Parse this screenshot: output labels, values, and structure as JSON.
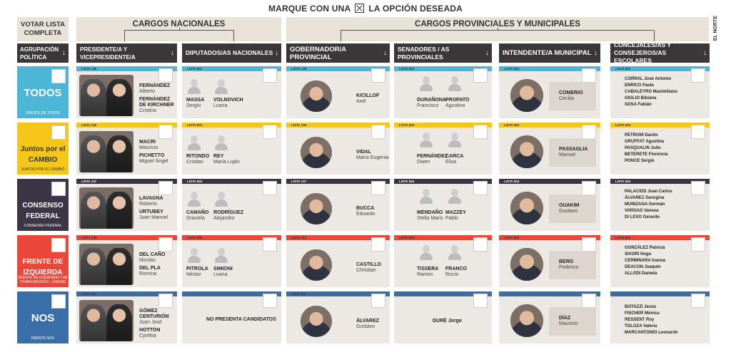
{
  "header": {
    "title_pre": "MARQUE CON UNA",
    "title_post": "LA OPCIÓN DESEADA",
    "brand": "EL NORTE"
  },
  "groups": {
    "votar": "VOTAR LISTA COMPLETA",
    "nacionales": "CARGOS NACIONALES",
    "provinciales": "CARGOS PROVINCIALES Y MUNICIPALES"
  },
  "columns": {
    "agrupacion": "AGRUPACIÓN POLÍTICA",
    "presidente": "PRESIDENTE/A Y VICEPRESIDENTE/A",
    "diputados": "DIPUTADOS/AS NACIONALES",
    "gobernador": "GOBERNADOR/A PROVINCIAL",
    "senadores": "SENADORES / AS PROVINCIALES",
    "intendente": "INTENDENTE/A MUNICIPAL",
    "concejales": "CONCEJALES/AS Y CONSEJEROS/AS ESCOLARES",
    "arrow": "↓"
  },
  "colors": {
    "todos": "#4bb6d6",
    "cambio": "#f5c518",
    "consenso": "#3b3545",
    "izquierda": "#e8473a",
    "nos": "#3a6ea8"
  },
  "parties": [
    {
      "logo": "TODOS",
      "sub": "FRENTE DE TODOS"
    },
    {
      "logo": "Juntos por el CAMBIO",
      "sub": "JUNTOS POR EL CAMBIO"
    },
    {
      "logo": "CONSENSO FEDERAL",
      "sub": "CONSENSO FEDERAL"
    },
    {
      "logo": "FRENTE DE IZQUIERDA",
      "sub": "FRENTE DE IZQUIERDA Y DE TRABAJADORES - UNIDAD"
    },
    {
      "logo": "NOS",
      "sub": "FRENTE NOS"
    }
  ],
  "rows": [
    {
      "pres_lista": "LISTA 136",
      "dip_lista": "LISTA 502",
      "gob_lista": "LISTA 136",
      "sen_lista": "LISTA 502",
      "int_lista": "LISTA 502",
      "con_lista": "LISTA 502",
      "pres": [
        {
          "ln": "FERNÁNDEZ",
          "fn": "Alberto"
        },
        {
          "ln": "FERNÁNDEZ DE KIRCHNER",
          "fn": "Cristina"
        }
      ],
      "dip": [
        {
          "ln": "MASSA",
          "fn": "Sergio"
        },
        {
          "ln": "VOLNOVICH",
          "fn": "Luana"
        }
      ],
      "gob": {
        "ln": "KICILLOF",
        "fn": "Axel"
      },
      "sen": [
        {
          "ln": "DURAÑONA",
          "fn": "Francisco"
        },
        {
          "ln": "PROPATO",
          "fn": "Agustina"
        }
      ],
      "int": {
        "ln": "COMERIO",
        "fn": "Cecilia"
      },
      "con": [
        "CORRAL José Antonio",
        "ENRICO Paola",
        "CABALEYRO Maximiliano",
        "GIGLIO Bibiana",
        "SOSA Fabián"
      ]
    },
    {
      "pres_lista": "LISTA 135",
      "dip_lista": "LISTA 503",
      "gob_lista": "LISTA 135",
      "sen_lista": "LISTA 503",
      "int_lista": "LISTA 503",
      "con_lista": "LISTA 503",
      "pres": [
        {
          "ln": "MACRI",
          "fn": "Mauricio"
        },
        {
          "ln": "PICHETTO",
          "fn": "Miguel Ángel"
        }
      ],
      "dip": [
        {
          "ln": "RITONDO",
          "fn": "Cristian"
        },
        {
          "ln": "REY",
          "fn": "María Luján"
        }
      ],
      "gob": {
        "ln": "VIDAL",
        "fn": "María Eugenia"
      },
      "sen": [
        {
          "ln": "FERNÁNDEZ",
          "fn": "Owen"
        },
        {
          "ln": "CARCA",
          "fn": "Elisa"
        }
      ],
      "int": {
        "ln": "PASSAGLIA",
        "fn": "Manuel"
      },
      "con": [
        "PETRONI Danilo",
        "GRUFFAT Agustina",
        "PASQUALIN Julio",
        "BETERETE Florencia",
        "PONCE Sergio"
      ]
    },
    {
      "pres_lista": "LISTA 137",
      "dip_lista": "LISTA 504",
      "gob_lista": "LISTA 137",
      "sen_lista": "LISTA 504",
      "int_lista": "LISTA 504",
      "con_lista": "LISTA 504",
      "pres": [
        {
          "ln": "LAVAGNA",
          "fn": "Roberto"
        },
        {
          "ln": "URTUBEY",
          "fn": "Juan Manuel"
        }
      ],
      "dip": [
        {
          "ln": "CAMAÑO",
          "fn": "Graciela"
        },
        {
          "ln": "RODRÍGUEZ",
          "fn": "Alejandro"
        }
      ],
      "gob": {
        "ln": "BUCCA",
        "fn": "Eduardo"
      },
      "sen": [
        {
          "ln": "MENDAÑO",
          "fn": "Stella Maris"
        },
        {
          "ln": "MAZZEY",
          "fn": "Pablo"
        }
      ],
      "int": {
        "ln": "OUAKIM",
        "fn": "Gustavo"
      },
      "con": [
        "PALACIOS Juan Carlos",
        "ÁLVAREZ Georgina",
        "MUNIZAGA Germán",
        "VARGAS Vanesa",
        "DI LEVO Gerardo"
      ]
    },
    {
      "pres_lista": "LISTA 133",
      "dip_lista": "LISTA 501",
      "gob_lista": "LISTA 133",
      "sen_lista": "LISTA 501",
      "int_lista": "LISTA 501",
      "con_lista": "LISTA 501",
      "pres": [
        {
          "ln": "DEL CAÑO",
          "fn": "Nicolás"
        },
        {
          "ln": "DEL PLA",
          "fn": "Romina"
        }
      ],
      "dip": [
        {
          "ln": "PITROLA",
          "fn": "Néstor"
        },
        {
          "ln": "SIMIONI",
          "fn": "Luana"
        }
      ],
      "gob": {
        "ln": "CASTILLO",
        "fn": "Christian"
      },
      "sen": [
        {
          "ln": "TISSERA",
          "fn": "Ramiro"
        },
        {
          "ln": "FRANCO",
          "fn": "Rocío"
        }
      ],
      "int": {
        "ln": "BERG",
        "fn": "Federico"
      },
      "con": [
        "GONZÁLEZ Patricia",
        "SIVORI Hugo",
        "CERMINARA Ivanna",
        "DEACON Joaquín",
        "ALLODI Daniela"
      ]
    },
    {
      "pres_lista": "LISTA 131",
      "dip_lista": "",
      "gob_lista": "LISTA 131",
      "sen_lista": "",
      "int_lista": "",
      "con_lista": "",
      "pres": [
        {
          "ln": "GÓMEZ CENTURIÓN",
          "fn": "Juan José"
        },
        {
          "ln": "HOTTON",
          "fn": "Cynthia"
        }
      ],
      "dip_none": "NO PRESENTA CANDIDATOS",
      "gob": {
        "ln": "ÁLVAREZ",
        "fn": "Gustavo"
      },
      "sen_single": "DURÉ Jorge",
      "int": {
        "ln": "DÍAZ",
        "fn": "Mauricio"
      },
      "con": [
        "BOTAZZI Jesús",
        "FISCHER Mónica",
        "RESSENT Roy",
        "TOLOZA Valeria",
        "MARCANTONIO Leonardo"
      ]
    }
  ]
}
